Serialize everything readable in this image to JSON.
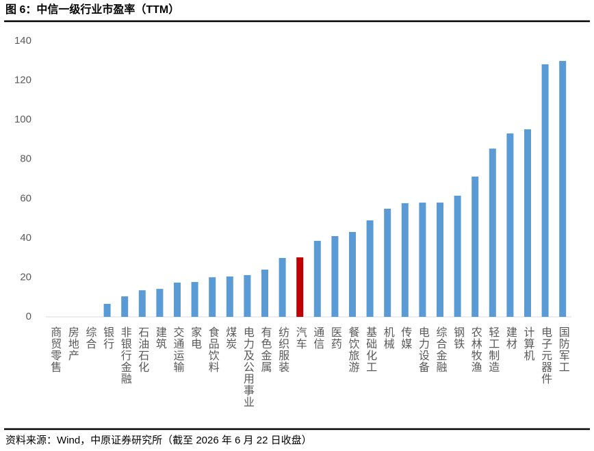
{
  "chart_data": {
    "type": "bar",
    "title": "图 6：中信一级行业市盈率（TTM）",
    "source": "资料来源：Wind，中原证券研究所（截至 2026 年 6 月 22 日收盘）",
    "categories": [
      "商贸零售",
      "房地产",
      "综合",
      "银行",
      "非银行金融",
      "石油石化",
      "建筑",
      "交通运输",
      "家电",
      "食品饮料",
      "煤炭",
      "电力及公用事业",
      "有色金属",
      "纺织服装",
      "汽车",
      "通信",
      "医药",
      "餐饮旅游",
      "基础化工",
      "机械",
      "传媒",
      "电力设备",
      "综合金融",
      "钢铁",
      "农林牧渔",
      "轻工制造",
      "建材",
      "计算机",
      "电子元器件",
      "国防军工"
    ],
    "values": [
      null,
      null,
      null,
      6.6,
      10.4,
      13.5,
      14.2,
      17.4,
      17.7,
      20.1,
      20.5,
      21.2,
      24.0,
      29.9,
      30.2,
      38.6,
      41.0,
      43.1,
      49.0,
      54.9,
      57.7,
      58.0,
      58.0,
      61.5,
      71.2,
      85.4,
      93.1,
      95.2,
      128.2,
      129.9
    ],
    "colors": [
      "#5b9bd5",
      "#5b9bd5",
      "#5b9bd5",
      "#5b9bd5",
      "#5b9bd5",
      "#5b9bd5",
      "#5b9bd5",
      "#5b9bd5",
      "#5b9bd5",
      "#5b9bd5",
      "#5b9bd5",
      "#5b9bd5",
      "#5b9bd5",
      "#5b9bd5",
      "#c00000",
      "#5b9bd5",
      "#5b9bd5",
      "#5b9bd5",
      "#5b9bd5",
      "#5b9bd5",
      "#5b9bd5",
      "#5b9bd5",
      "#5b9bd5",
      "#5b9bd5",
      "#5b9bd5",
      "#5b9bd5",
      "#5b9bd5",
      "#5b9bd5",
      "#5b9bd5",
      "#5b9bd5"
    ],
    "ylim": [
      0,
      140
    ],
    "yticks": [
      0,
      20,
      40,
      60,
      80,
      100,
      120,
      140
    ],
    "grid": false
  }
}
